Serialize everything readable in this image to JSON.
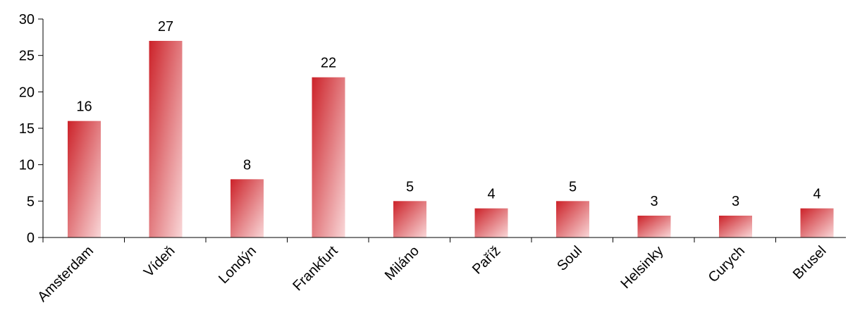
{
  "chart_data": {
    "type": "bar",
    "categories": [
      "Amsterdam",
      "Vídeň",
      "Londýn",
      "Frankfurt",
      "Miláno",
      "Paříž",
      "Soul",
      "Helsinky",
      "Curych",
      "Brusel"
    ],
    "values": [
      16,
      27,
      8,
      22,
      5,
      4,
      5,
      3,
      3,
      4
    ],
    "data_labels": [
      "16",
      "27",
      "8",
      "22",
      "5",
      "4",
      "5",
      "3",
      "3",
      "4"
    ],
    "y_ticks": [
      0,
      5,
      10,
      15,
      20,
      25,
      30
    ],
    "y_tick_labels": [
      "0",
      "5",
      "10",
      "15",
      "20",
      "25",
      "30"
    ],
    "ylim": [
      0,
      30
    ],
    "title": "",
    "xlabel": "",
    "ylabel": "",
    "grid": false,
    "legend": "none",
    "bar_gradient": {
      "dark": "#cc2229",
      "light": "#f9d7d8"
    },
    "category_label_rotation": "diagonal"
  }
}
